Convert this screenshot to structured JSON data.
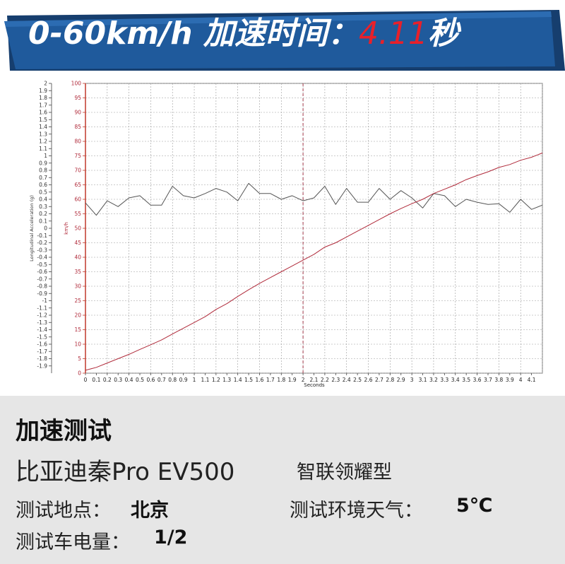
{
  "header": {
    "title_prefix": "0-60km/h 加速时间：",
    "title_value": "4.11",
    "title_suffix": "秒",
    "banner_color": "#1f5a9c",
    "banner_dark": "#163e6e",
    "accent_color": "#e8202a"
  },
  "chart_data": {
    "type": "line",
    "xlabel": "Seconds",
    "x_ticks": [
      "0",
      "0.1",
      "0.2",
      "0.3",
      "0.4",
      "0.5",
      "0.6",
      "0.7",
      "0.8",
      "0.9",
      "1",
      "1.1",
      "1.2",
      "1.3",
      "1.4",
      "1.5",
      "1.6",
      "1.7",
      "1.8",
      "1.9",
      "2",
      "2.1",
      "2.2",
      "2.3",
      "2.4",
      "2.5",
      "2.6",
      "2.7",
      "2.8",
      "2.9",
      "3",
      "3.1",
      "3.2",
      "3.3",
      "3.4",
      "3.5",
      "3.6",
      "3.7",
      "3.8",
      "3.9",
      "4",
      "4.1"
    ],
    "xlim": [
      0,
      4.2
    ],
    "left_axis": {
      "label": "Longitudinal Acceleration (g)",
      "ticks": [
        "2",
        "1.9",
        "1.8",
        "1.7",
        "1.6",
        "1.5",
        "1.4",
        "1.3",
        "1.2",
        "1.1",
        "1",
        "0.9",
        "0.8",
        "0.7",
        "0.6",
        "0.5",
        "0.4",
        "0.3",
        "0.2",
        "0.1",
        "0",
        "-0.1",
        "-0.2",
        "-0.3",
        "-0.4",
        "-0.5",
        "-0.6",
        "-0.7",
        "-0.8",
        "-0.9",
        "-1",
        "-1.1",
        "-1.2",
        "-1.3",
        "-1.4",
        "-1.5",
        "-1.6",
        "-1.7",
        "-1.8",
        "-1.9"
      ],
      "ylim": [
        -2,
        2
      ]
    },
    "right_axis": {
      "label": "km/h",
      "ticks": [
        "100",
        "95",
        "90",
        "85",
        "80",
        "75",
        "70",
        "65",
        "60",
        "55",
        "50",
        "45",
        "40",
        "35",
        "30",
        "25",
        "20",
        "15",
        "10",
        "5",
        "0"
      ],
      "ylim": [
        0,
        100
      ]
    },
    "marker_x": 2.0,
    "grid": true,
    "series": [
      {
        "axis": "left",
        "color": "#555555",
        "x": [
          0,
          0.1,
          0.2,
          0.3,
          0.4,
          0.5,
          0.6,
          0.7,
          0.8,
          0.9,
          1.0,
          1.1,
          1.2,
          1.3,
          1.4,
          1.5,
          1.6,
          1.7,
          1.8,
          1.9,
          2.0,
          2.1,
          2.2,
          2.3,
          2.4,
          2.5,
          2.6,
          2.7,
          2.8,
          2.9,
          3.0,
          3.1,
          3.2,
          3.3,
          3.4,
          3.5,
          3.6,
          3.7,
          3.8,
          3.9,
          4.0,
          4.1,
          4.2
        ],
        "values": [
          0.35,
          0.18,
          0.38,
          0.3,
          0.42,
          0.45,
          0.32,
          0.32,
          0.58,
          0.45,
          0.42,
          0.48,
          0.55,
          0.5,
          0.38,
          0.62,
          0.48,
          0.48,
          0.4,
          0.45,
          0.38,
          0.42,
          0.58,
          0.33,
          0.55,
          0.36,
          0.36,
          0.55,
          0.4,
          0.52,
          0.42,
          0.28,
          0.48,
          0.45,
          0.3,
          0.4,
          0.36,
          0.33,
          0.34,
          0.22,
          0.4,
          0.26,
          0.32
        ]
      },
      {
        "axis": "right",
        "color": "#b02a3a",
        "x": [
          0,
          0.1,
          0.2,
          0.3,
          0.4,
          0.5,
          0.6,
          0.7,
          0.8,
          0.9,
          1.0,
          1.1,
          1.2,
          1.3,
          1.4,
          1.5,
          1.6,
          1.7,
          1.8,
          1.9,
          2.0,
          2.1,
          2.2,
          2.3,
          2.4,
          2.5,
          2.6,
          2.7,
          2.8,
          2.9,
          3.0,
          3.1,
          3.2,
          3.3,
          3.4,
          3.5,
          3.6,
          3.7,
          3.8,
          3.9,
          4.0,
          4.1,
          4.2
        ],
        "values": [
          1,
          2,
          3.5,
          5,
          6.5,
          8.2,
          9.8,
          11.5,
          13.5,
          15.5,
          17.5,
          19.5,
          22,
          24,
          26.5,
          28.8,
          31,
          33,
          35,
          37,
          39,
          41,
          43.5,
          45,
          47,
          49,
          51,
          53,
          55,
          56.8,
          58.5,
          60,
          62,
          63.5,
          65,
          66.8,
          68.2,
          69.5,
          71,
          72,
          73.5,
          74.5,
          76
        ]
      }
    ]
  },
  "info": {
    "title": "加速测试",
    "model": "比亚迪秦Pro EV500",
    "trim": "智联领耀型",
    "location_label": "测试地点：",
    "location_value": "北京",
    "weather_label": "测试环境天气：",
    "weather_value": "5℃",
    "battery_label": "测试车电量：",
    "battery_value": "1/2"
  }
}
